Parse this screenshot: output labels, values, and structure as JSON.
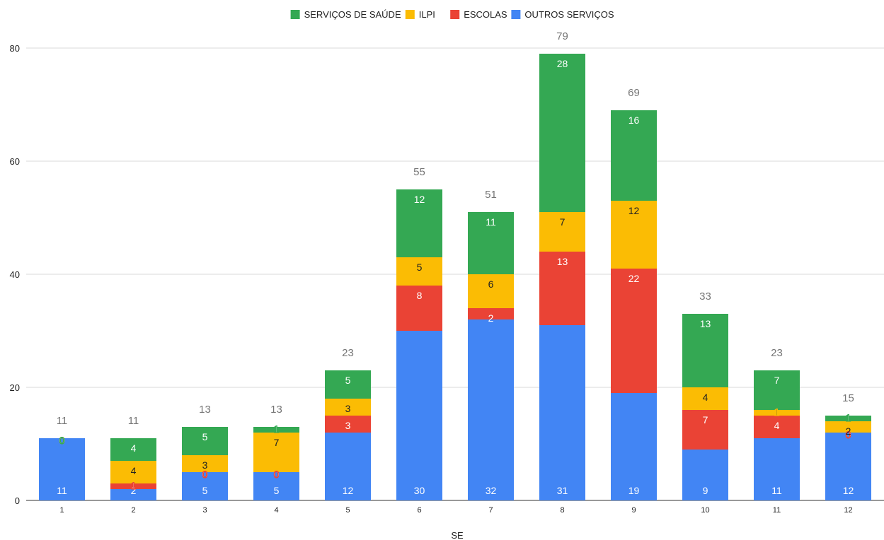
{
  "chart_data": {
    "type": "bar",
    "stacked": true,
    "categories": [
      "1",
      "2",
      "3",
      "4",
      "5",
      "6",
      "7",
      "8",
      "9",
      "10",
      "11",
      "12"
    ],
    "series": [
      {
        "name": "OUTROS SERVIÇOS",
        "color": "#4285F4",
        "label_color": "#ffffff",
        "values": [
          11,
          2,
          5,
          5,
          12,
          30,
          32,
          31,
          19,
          9,
          11,
          12
        ]
      },
      {
        "name": "ESCOLAS",
        "color": "#EA4335",
        "label_color": "#ffffff",
        "values": [
          0,
          1,
          0,
          0,
          3,
          8,
          2,
          13,
          22,
          7,
          4,
          0
        ]
      },
      {
        "name": "ILPI",
        "color": "#FBBC04",
        "label_color": "#222222",
        "values": [
          0,
          4,
          3,
          7,
          3,
          5,
          6,
          7,
          12,
          4,
          1,
          2
        ]
      },
      {
        "name": "SERVIÇOS DE SAÚDE",
        "color": "#34A853",
        "label_color": "#ffffff",
        "values": [
          0,
          4,
          5,
          1,
          5,
          12,
          11,
          28,
          16,
          13,
          7,
          1
        ]
      }
    ],
    "legend_order": [
      "SERVIÇOS DE SAÚDE",
      "ILPI",
      "ESCOLAS",
      "OUTROS SERVIÇOS"
    ],
    "totals": [
      11,
      11,
      13,
      13,
      23,
      55,
      51,
      79,
      69,
      33,
      23,
      15
    ],
    "xlabel": "SE",
    "ylabel": "",
    "ylim": [
      0,
      80
    ],
    "yticks": [
      0,
      20,
      40,
      60,
      80
    ],
    "grid": true,
    "legend_position": "top-center"
  }
}
